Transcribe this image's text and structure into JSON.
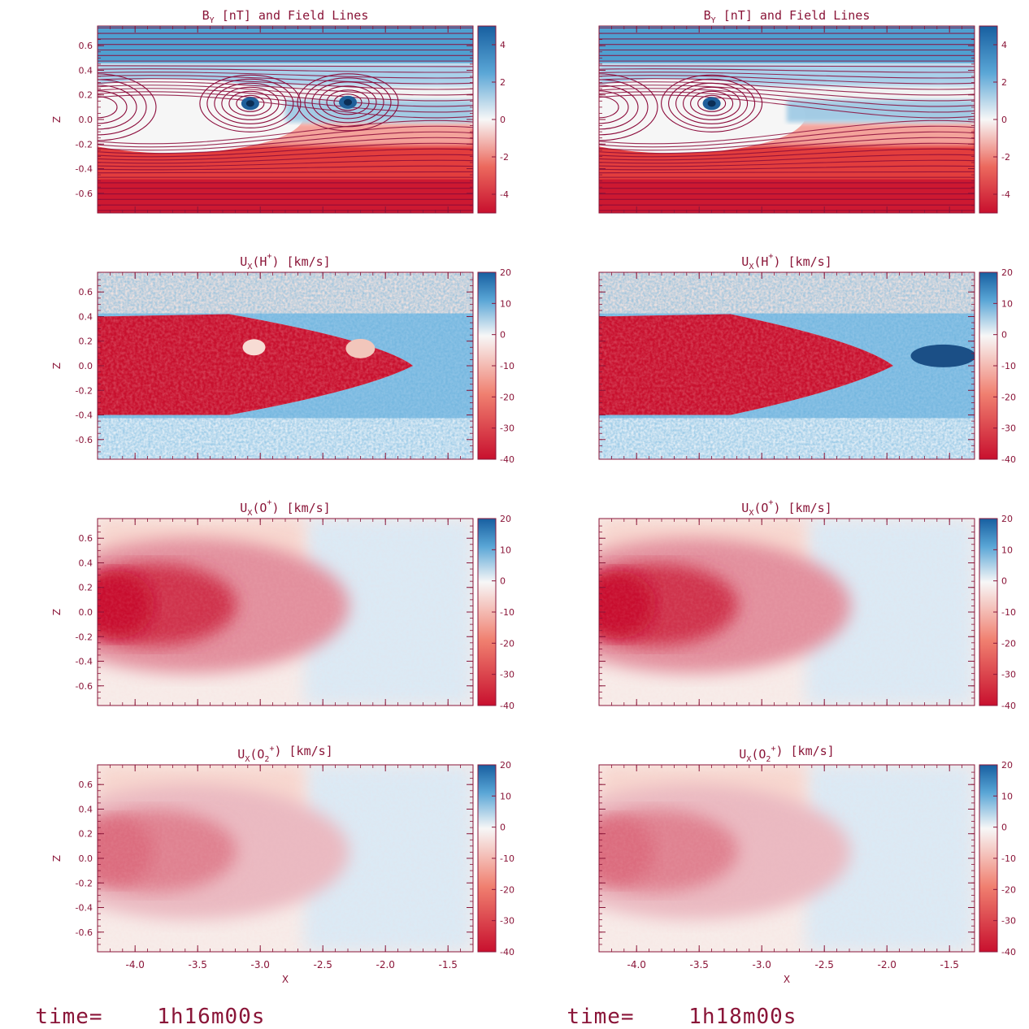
{
  "colors": {
    "axis": "#8a1538",
    "field_lines": "#8b0a3a",
    "cmap_neg": "#c8102e",
    "cmap_mid": "#f7f7f7",
    "cmap_pos": "#1f6fb0"
  },
  "columns": [
    {
      "time_prefix": "time=",
      "time_value": "1h16m00s"
    },
    {
      "time_prefix": "time=",
      "time_value": "1h18m00s"
    }
  ],
  "chart_data": [
    {
      "type": "heatmap",
      "row": 0,
      "col": 0,
      "title_parts": [
        "B",
        "Y",
        " [nT] and Field Lines"
      ],
      "xlabel": "",
      "ylabel": "Z",
      "xlim": [
        -4.3,
        -1.3
      ],
      "ylim": [
        -0.76,
        0.76
      ],
      "xticks": [
        -4.0,
        -3.5,
        -3.0,
        -2.5,
        -2.0,
        -1.5
      ],
      "xticklabels_shown": false,
      "yticks": [
        "-0.6",
        "-0.4",
        "-0.2",
        "0.0",
        "0.2",
        "0.4",
        "0.6"
      ],
      "colorbar": {
        "min": -5,
        "max": 5,
        "ticks": [
          "4",
          "2",
          "0",
          "-2",
          "-4"
        ]
      },
      "streamlines": true,
      "features": [
        {
          "x": -3.08,
          "z": 0.13
        },
        {
          "x": -2.3,
          "z": 0.14
        }
      ]
    },
    {
      "type": "heatmap",
      "row": 0,
      "col": 1,
      "title_parts": [
        "B",
        "Y",
        " [nT] and Field Lines"
      ],
      "xlabel": "",
      "ylabel": "",
      "xlim": [
        -4.3,
        -1.3
      ],
      "ylim": [
        -0.76,
        0.76
      ],
      "xticks": [
        -4.0,
        -3.5,
        -3.0,
        -2.5,
        -2.0,
        -1.5
      ],
      "xticklabels_shown": false,
      "yticks": [],
      "colorbar": {
        "min": -5,
        "max": 5,
        "ticks": [
          "4",
          "2",
          "0",
          "-2",
          "-4"
        ]
      },
      "streamlines": true,
      "features": [
        {
          "x": -3.4,
          "z": 0.13
        }
      ]
    },
    {
      "type": "heatmap",
      "row": 1,
      "col": 0,
      "title_parts": [
        "U",
        "X",
        "(H",
        "+",
        ") [km/s]"
      ],
      "xlabel": "",
      "ylabel": "Z",
      "xlim": [
        -4.3,
        -1.3
      ],
      "ylim": [
        -0.76,
        0.76
      ],
      "xticks": [
        -4.0,
        -3.5,
        -3.0,
        -2.5,
        -2.0,
        -1.5
      ],
      "xticklabels_shown": false,
      "yticks": [
        "-0.6",
        "-0.4",
        "-0.2",
        "0.0",
        "0.2",
        "0.4",
        "0.6"
      ],
      "colorbar": {
        "min": -40,
        "max": 20,
        "ticks": [
          "20",
          "10",
          "0",
          "-10",
          "-20",
          "-30",
          "-40"
        ]
      },
      "jet_tip_x": -1.78,
      "jet_halfwidth_z": 0.4
    },
    {
      "type": "heatmap",
      "row": 1,
      "col": 1,
      "title_parts": [
        "U",
        "X",
        "(H",
        "+",
        ") [km/s]"
      ],
      "xlabel": "",
      "ylabel": "",
      "xlim": [
        -4.3,
        -1.3
      ],
      "ylim": [
        -0.76,
        0.76
      ],
      "xticks": [
        -4.0,
        -3.5,
        -3.0,
        -2.5,
        -2.0,
        -1.5
      ],
      "xticklabels_shown": false,
      "yticks": [],
      "colorbar": {
        "min": -40,
        "max": 20,
        "ticks": [
          "20",
          "10",
          "0",
          "-10",
          "-20",
          "-30",
          "-40"
        ]
      },
      "jet_tip_x": -1.95,
      "jet_halfwidth_z": 0.4
    },
    {
      "type": "heatmap",
      "row": 2,
      "col": 0,
      "title_parts": [
        "U",
        "X",
        "(O",
        "+",
        ") [km/s]"
      ],
      "xlabel": "",
      "ylabel": "Z",
      "xlim": [
        -4.3,
        -1.3
      ],
      "ylim": [
        -0.76,
        0.76
      ],
      "xticks": [
        -4.0,
        -3.5,
        -3.0,
        -2.5,
        -2.0,
        -1.5
      ],
      "xticklabels_shown": false,
      "yticks": [
        "-0.6",
        "-0.4",
        "-0.2",
        "0.0",
        "0.2",
        "0.4",
        "0.6"
      ],
      "colorbar": {
        "min": -40,
        "max": 20,
        "ticks": [
          "20",
          "10",
          "0",
          "-10",
          "-20",
          "-30",
          "-40"
        ]
      }
    },
    {
      "type": "heatmap",
      "row": 2,
      "col": 1,
      "title_parts": [
        "U",
        "X",
        "(O",
        "+",
        ") [km/s]"
      ],
      "xlabel": "",
      "ylabel": "",
      "xlim": [
        -4.3,
        -1.3
      ],
      "ylim": [
        -0.76,
        0.76
      ],
      "xticks": [
        -4.0,
        -3.5,
        -3.0,
        -2.5,
        -2.0,
        -1.5
      ],
      "xticklabels_shown": false,
      "yticks": [],
      "colorbar": {
        "min": -40,
        "max": 20,
        "ticks": [
          "20",
          "10",
          "0",
          "-10",
          "-20",
          "-30",
          "-40"
        ]
      }
    },
    {
      "type": "heatmap",
      "row": 3,
      "col": 0,
      "title_parts": [
        "U",
        "X",
        "(O",
        "2",
        "+",
        ") [km/s]"
      ],
      "xlabel": "X",
      "ylabel": "Z",
      "xlim": [
        -4.3,
        -1.3
      ],
      "ylim": [
        -0.76,
        0.76
      ],
      "xticks": [
        -4.0,
        -3.5,
        -3.0,
        -2.5,
        -2.0,
        -1.5
      ],
      "xticklabels_shown": true,
      "xticklabels": [
        "-4.0",
        "-3.5",
        "-3.0",
        "-2.5",
        "-2.0",
        "-1.5"
      ],
      "yticks": [
        "-0.6",
        "-0.4",
        "-0.2",
        "0.0",
        "0.2",
        "0.4",
        "0.6"
      ],
      "colorbar": {
        "min": -40,
        "max": 20,
        "ticks": [
          "20",
          "10",
          "0",
          "-10",
          "-20",
          "-30",
          "-40"
        ]
      }
    },
    {
      "type": "heatmap",
      "row": 3,
      "col": 1,
      "title_parts": [
        "U",
        "X",
        "(O",
        "2",
        "+",
        ") [km/s]"
      ],
      "xlabel": "X",
      "ylabel": "",
      "xlim": [
        -4.3,
        -1.3
      ],
      "ylim": [
        -0.76,
        0.76
      ],
      "xticks": [
        -4.0,
        -3.5,
        -3.0,
        -2.5,
        -2.0,
        -1.5
      ],
      "xticklabels_shown": true,
      "xticklabels": [
        "-4.0",
        "-3.5",
        "-3.0",
        "-2.5",
        "-2.0",
        "-1.5"
      ],
      "yticks": [],
      "colorbar": {
        "min": -40,
        "max": 20,
        "ticks": [
          "20",
          "10",
          "0",
          "-10",
          "-20",
          "-30",
          "-40"
        ]
      }
    }
  ]
}
